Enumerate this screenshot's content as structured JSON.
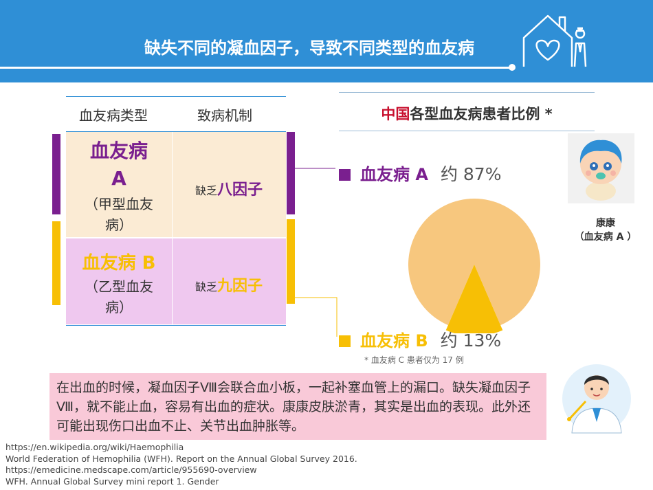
{
  "header": {
    "title": "缺失不同的凝血因子，导致不同类型的血友病"
  },
  "table": {
    "headers": [
      "血友病类型",
      "致病机制"
    ],
    "rows": [
      {
        "name_line1": "血友病",
        "name_line2": "A",
        "sub_line1": "（甲型血友",
        "sub_line2": "病）",
        "mech_prefix": "缺乏",
        "mech_highlight": "八因子"
      },
      {
        "name": "血友病 B",
        "sub_line1": "（乙型血友",
        "sub_line2": "病）",
        "mech_prefix": "缺乏",
        "mech_highlight": "九因子"
      }
    ]
  },
  "chart": {
    "title_red": "中国",
    "title_rest": "各型血友病患者比例 *",
    "footnote": "*  血友病 C 患者仅为 17 例",
    "colors": {
      "a": "#f7c77e",
      "b": "#f7bf05",
      "legend_a": "#7a1f8f",
      "legend_b": "#f7bf05"
    }
  },
  "chart_data": {
    "type": "pie",
    "title": "中国各型血友病患者比例 *",
    "slices": [
      {
        "label": "血友病 A",
        "value": 87,
        "value_label": "约 87%"
      },
      {
        "label": "血友病 B",
        "value": 13,
        "value_label": "约 13%"
      }
    ]
  },
  "character": {
    "name": "康康",
    "label": "（血友病 A ）"
  },
  "note": {
    "text": "在出血的时候，凝血因子Ⅷ会联合血小板，一起补塞血管上的漏口。缺失凝血因子Ⅷ，就不能止血，容易有出血的症状。康康皮肤淤青，其实是出血的表现。此外还可能出现伤口出血不止、关节出血肿胀等。"
  },
  "references": [
    "https://en.wikipedia.org/wiki/Haemophilia",
    "World Federation of Hemophilia (WFH). Report on the Annual Global Survey 2016.",
    "https://emedicine.medscape.com/article/955690-overview",
    "WFH. Annual Global Survey mini report 1. Gender"
  ]
}
